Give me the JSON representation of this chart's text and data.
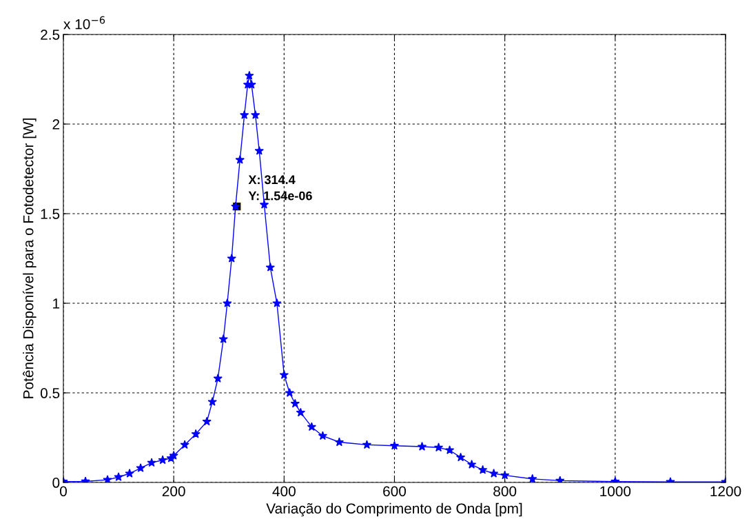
{
  "chart_data": {
    "type": "line",
    "xlabel": "Variação do Comprimento de Onda [pm]",
    "ylabel": "Potência Disponível para o Fotodetector [W]",
    "x": [
      0,
      40,
      80,
      100,
      120,
      140,
      160,
      180,
      195,
      200,
      220,
      240,
      260,
      270,
      280,
      290,
      297,
      305,
      312,
      320,
      328,
      334,
      337,
      341,
      348,
      355,
      364,
      375,
      387,
      400,
      410,
      420,
      430,
      450,
      470,
      500,
      550,
      600,
      650,
      680,
      700,
      720,
      740,
      760,
      780,
      800,
      850,
      900,
      1000,
      1100,
      1200
    ],
    "series": [
      {
        "color": "#0000ff",
        "values": [
          0.005,
          0.006,
          0.015,
          0.03,
          0.05,
          0.08,
          0.11,
          0.125,
          0.135,
          0.15,
          0.21,
          0.27,
          0.34,
          0.45,
          0.58,
          0.8,
          1.0,
          1.25,
          1.54,
          1.8,
          2.05,
          2.22,
          2.27,
          2.22,
          2.05,
          1.85,
          1.55,
          1.2,
          1.0,
          0.6,
          0.5,
          0.44,
          0.39,
          0.31,
          0.26,
          0.225,
          0.21,
          0.205,
          0.2,
          0.195,
          0.18,
          0.14,
          0.1,
          0.07,
          0.05,
          0.04,
          0.02,
          0.01,
          0.005,
          0.003,
          0.003
        ]
      }
    ],
    "xlim": [
      0,
      1200
    ],
    "xticks": [
      0,
      200,
      400,
      600,
      800,
      1000,
      1200
    ],
    "ylim": [
      0,
      2.5
    ],
    "yticks": [
      0,
      0.5,
      1,
      1.5,
      2,
      2.5
    ],
    "grid": true,
    "marker": "star",
    "line_style": "solid",
    "legend": false,
    "annotations": [
      "x 10$^{−6}$",
      {
        "text": "X: 314.4\nY: 1.54e-06",
        "x": 314.4,
        "y": 1.54
      }
    ]
  }
}
